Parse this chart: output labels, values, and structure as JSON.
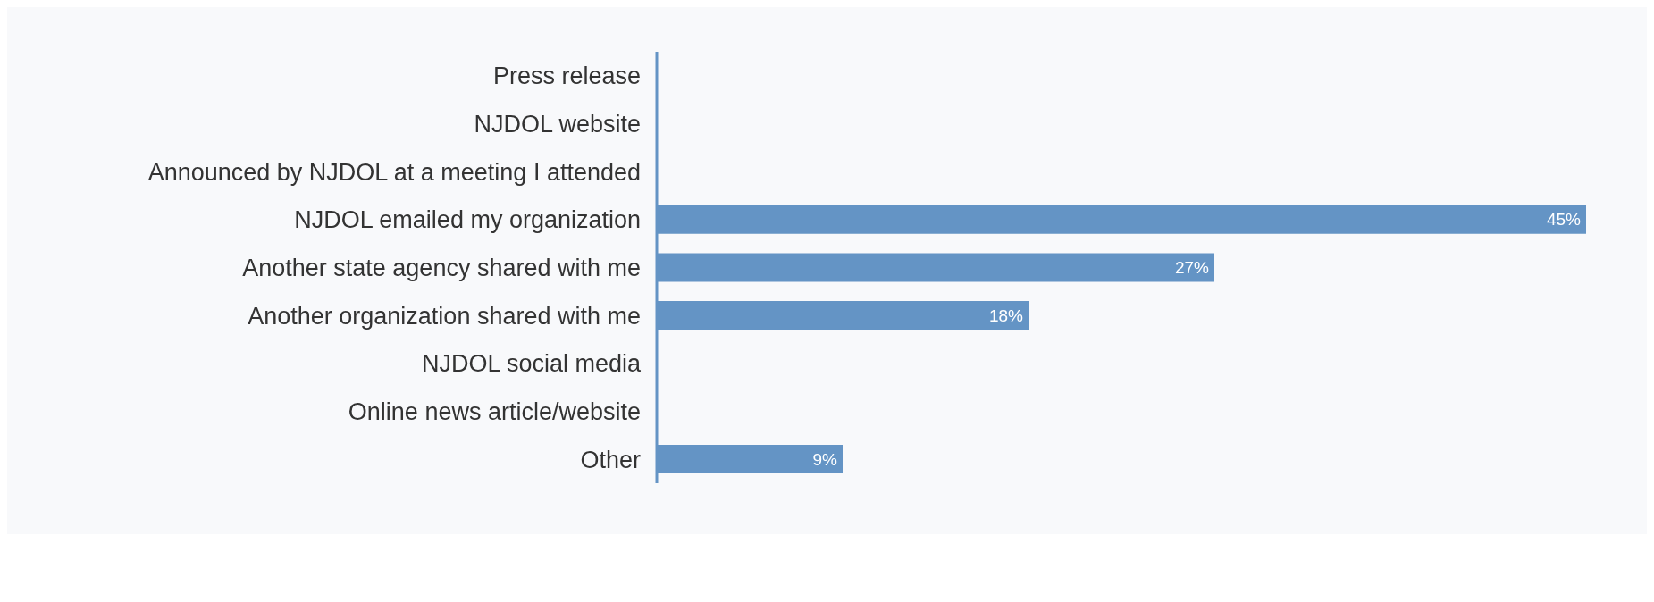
{
  "chart_data": {
    "type": "bar",
    "orientation": "horizontal",
    "categories": [
      "Press release",
      "NJDOL website",
      "Announced by NJDOL at a meeting I attended",
      "NJDOL emailed my organization",
      "Another state agency shared with me",
      "Another organization shared with me",
      "NJDOL social media",
      "Online news article/website",
      "Other"
    ],
    "values": [
      0,
      0,
      0,
      45,
      27,
      18,
      0,
      0,
      9
    ],
    "value_labels": [
      null,
      null,
      null,
      "45%",
      "27%",
      "18%",
      null,
      null,
      "9%"
    ],
    "color": "#6494c5"
  }
}
